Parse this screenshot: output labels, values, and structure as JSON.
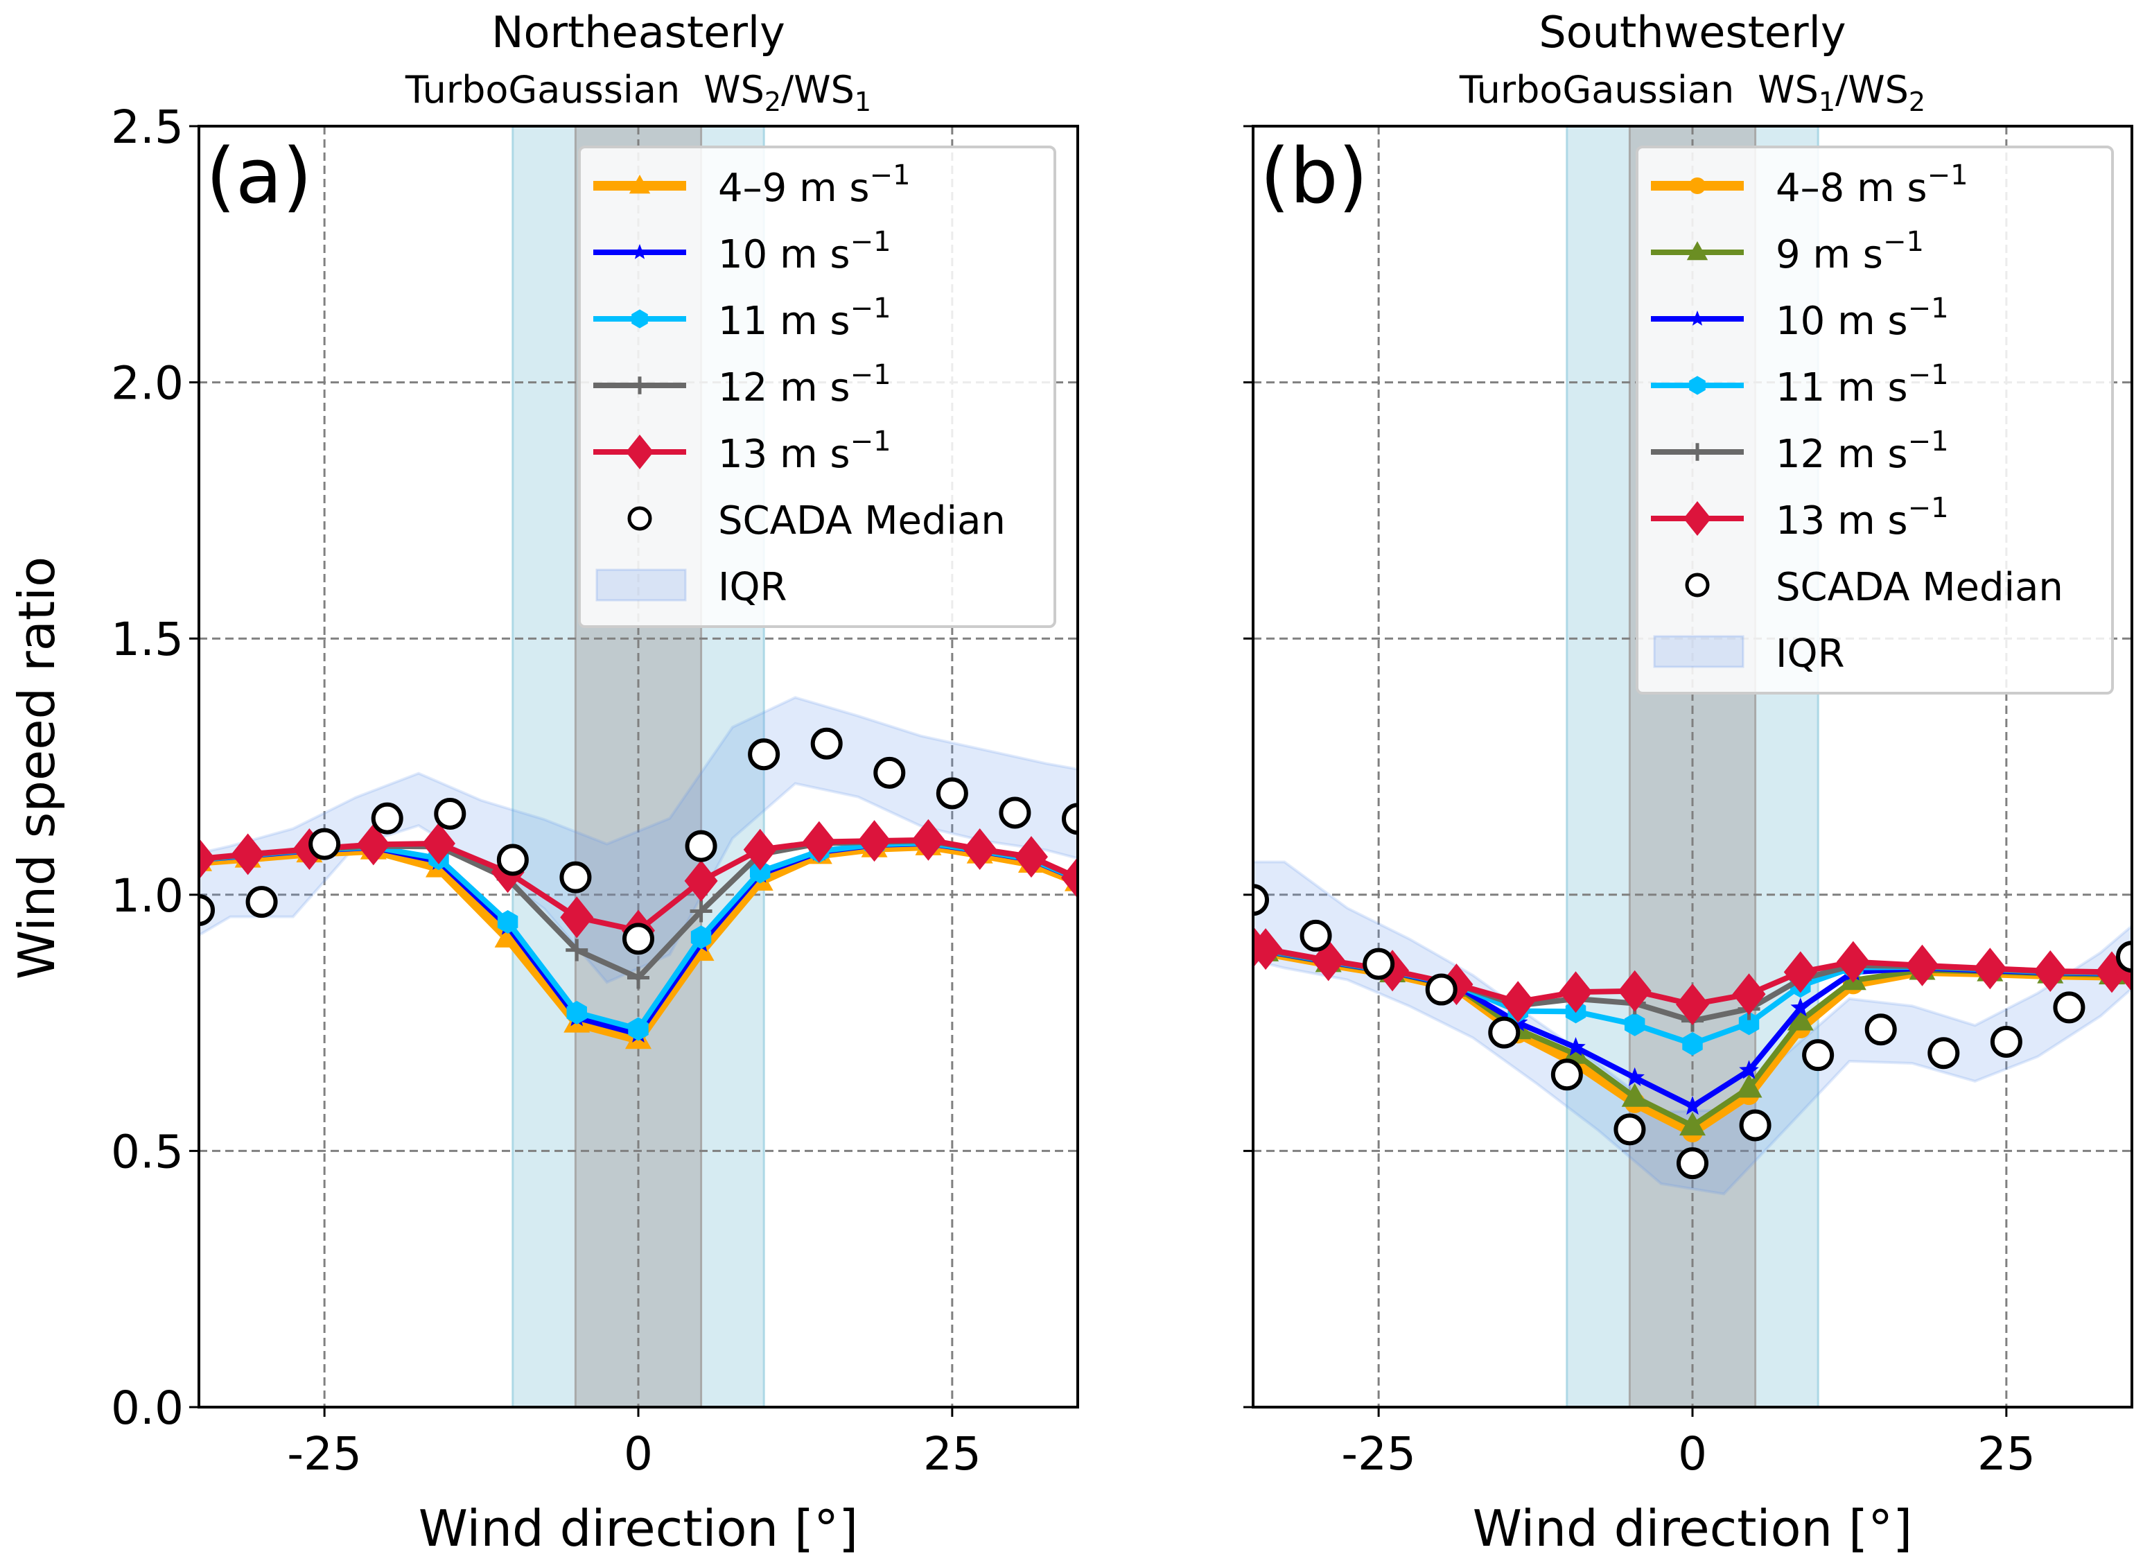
{
  "figure": {
    "ylabel": "Wind speed ratio",
    "xlabel": "Wind direction [°]"
  },
  "chart_data": [
    {
      "type": "line",
      "panel_label": "(a)",
      "title": "Northeasterly",
      "subtitle_prefix": "TurboGaussian",
      "subtitle_ratio": {
        "num": "WS",
        "num_sub": "2",
        "den": "WS",
        "den_sub": "1"
      },
      "xlabel": "Wind direction [°]",
      "ylabel": "Wind speed ratio",
      "xlim": [
        -35,
        35
      ],
      "ylim": [
        0.0,
        2.5
      ],
      "xticks": [
        -25,
        0,
        25
      ],
      "xtick_labels": [
        "-25",
        "0",
        "25"
      ],
      "yticks": [
        0.0,
        0.5,
        1.0,
        1.5,
        2.0,
        2.5
      ],
      "ytick_labels": [
        "0.0",
        "0.5",
        "1.0",
        "1.5",
        "2.0",
        "2.5"
      ],
      "grid": true,
      "legend_position": "top-right",
      "shaded_regions": [
        {
          "name": "outer-sector",
          "x": [
            -10,
            10
          ],
          "color": "#add8e6"
        },
        {
          "name": "inner-sector",
          "x": [
            -5,
            5
          ],
          "color": "#a9a9a9"
        }
      ],
      "model_x": [
        -35,
        -31.1,
        -26.2,
        -21.1,
        -15.9,
        -10.4,
        -4.9,
        0,
        5,
        9.7,
        14.4,
        18.8,
        23.1,
        27.2,
        31.3,
        35
      ],
      "series": [
        {
          "name": "4–9 m s⁻¹",
          "label_base": "4–9",
          "color": "#ffa500",
          "marker": "triangle",
          "width": "thick",
          "values": [
            1.065,
            1.072,
            1.082,
            1.088,
            1.053,
            0.916,
            0.75,
            0.718,
            0.89,
            1.027,
            1.079,
            1.092,
            1.096,
            1.08,
            1.062,
            1.026
          ]
        },
        {
          "name": "10 m s⁻¹",
          "label_base": "10",
          "color": "#0000ff",
          "marker": "star",
          "width": "normal",
          "values": [
            1.068,
            1.076,
            1.086,
            1.092,
            1.065,
            0.938,
            0.76,
            0.728,
            0.905,
            1.04,
            1.083,
            1.097,
            1.1,
            1.085,
            1.068,
            1.03
          ]
        },
        {
          "name": "11 m s⁻¹",
          "label_base": "11",
          "color": "#00bfff",
          "marker": "hexagon",
          "width": "normal",
          "values": [
            1.068,
            1.077,
            1.087,
            1.093,
            1.071,
            0.947,
            0.77,
            0.738,
            0.917,
            1.045,
            1.085,
            1.098,
            1.101,
            1.086,
            1.069,
            1.031
          ]
        },
        {
          "name": "12 m s⁻¹",
          "label_base": "12",
          "color": "#696969",
          "marker": "plus",
          "width": "normal",
          "values": [
            1.069,
            1.078,
            1.088,
            1.095,
            1.094,
            1.031,
            0.892,
            0.838,
            0.968,
            1.079,
            1.1,
            1.103,
            1.105,
            1.088,
            1.073,
            1.032
          ]
        },
        {
          "name": "13 m s⁻¹",
          "label_base": "13",
          "color": "#dc143c",
          "marker": "diamond",
          "width": "normal",
          "values": [
            1.07,
            1.079,
            1.089,
            1.098,
            1.1,
            1.044,
            0.956,
            0.93,
            1.027,
            1.088,
            1.103,
            1.105,
            1.107,
            1.089,
            1.074,
            1.033
          ]
        }
      ],
      "scada_median": {
        "name": "SCADA Median",
        "x": [
          -35,
          -30,
          -25,
          -20,
          -15,
          -10,
          -5,
          0,
          5,
          10,
          15,
          20,
          25,
          30,
          35
        ],
        "values": [
          0.97,
          0.986,
          1.099,
          1.149,
          1.158,
          1.068,
          1.034,
          0.914,
          1.095,
          1.274,
          1.295,
          1.238,
          1.198,
          1.16,
          1.148
        ]
      },
      "iqr": {
        "name": "IQR",
        "color": "#6495ed",
        "x": [
          -35,
          -32.5,
          -27.5,
          -22.5,
          -17.5,
          -12.5,
          -7.5,
          -2.5,
          2.5,
          7.5,
          12.5,
          17.5,
          22.5,
          27.5,
          32.5,
          35
        ],
        "upper": [
          1.081,
          1.095,
          1.129,
          1.19,
          1.237,
          1.184,
          1.147,
          1.099,
          1.149,
          1.327,
          1.385,
          1.349,
          1.31,
          1.283,
          1.256,
          1.245
        ],
        "lower": [
          0.921,
          0.957,
          0.957,
          1.096,
          1.135,
          1.06,
          0.973,
          0.829,
          0.883,
          1.11,
          1.217,
          1.191,
          1.134,
          1.105,
          1.087,
          1.071
        ]
      }
    },
    {
      "type": "line",
      "panel_label": "(b)",
      "title": "Southwesterly",
      "subtitle_prefix": "TurboGaussian",
      "subtitle_ratio": {
        "num": "WS",
        "num_sub": "1",
        "den": "WS",
        "den_sub": "2"
      },
      "xlabel": "Wind direction [°]",
      "ylabel": "",
      "xlim": [
        -35,
        35
      ],
      "ylim": [
        0.0,
        2.5
      ],
      "xticks": [
        -25,
        0,
        25
      ],
      "xtick_labels": [
        "-25",
        "0",
        "25"
      ],
      "yticks": [
        0.0,
        0.5,
        1.0,
        1.5,
        2.0,
        2.5
      ],
      "ytick_labels": [],
      "grid": true,
      "legend_position": "top-right",
      "shaded_regions": [
        {
          "name": "outer-sector",
          "x": [
            -10,
            10
          ],
          "color": "#add8e6"
        },
        {
          "name": "inner-sector",
          "x": [
            -5,
            5
          ],
          "color": "#a9a9a9"
        }
      ],
      "model_x": [
        -35,
        -34.0,
        -29.0,
        -23.9,
        -18.8,
        -13.9,
        -9.3,
        -4.6,
        0,
        4.5,
        8.6,
        12.8,
        18.3,
        23.7,
        28.5,
        33.4,
        35
      ],
      "series": [
        {
          "name": "4–8 m s⁻¹",
          "label_base": "4–8",
          "color": "#ffa500",
          "marker": "circle",
          "width": "thick",
          "values": [
            0.893,
            0.888,
            0.866,
            0.846,
            0.818,
            0.73,
            0.672,
            0.594,
            0.537,
            0.61,
            0.74,
            0.826,
            0.851,
            0.848,
            0.844,
            0.842,
            0.843
          ]
        },
        {
          "name": "9 m s⁻¹",
          "label_base": "9",
          "color": "#6b8e23",
          "marker": "triangle",
          "width": "normal",
          "values": [
            0.894,
            0.889,
            0.868,
            0.848,
            0.82,
            0.737,
            0.689,
            0.605,
            0.549,
            0.623,
            0.754,
            0.833,
            0.853,
            0.85,
            0.846,
            0.844,
            0.845
          ]
        },
        {
          "name": "10 m s⁻¹",
          "label_base": "10",
          "color": "#0000ff",
          "marker": "star",
          "width": "normal",
          "values": [
            0.895,
            0.89,
            0.869,
            0.849,
            0.822,
            0.75,
            0.702,
            0.643,
            0.587,
            0.657,
            0.779,
            0.849,
            0.857,
            0.852,
            0.848,
            0.846,
            0.847
          ]
        },
        {
          "name": "11 m s⁻¹",
          "label_base": "11",
          "color": "#00bfff",
          "marker": "hexagon",
          "width": "normal",
          "values": [
            0.896,
            0.891,
            0.87,
            0.85,
            0.824,
            0.773,
            0.772,
            0.747,
            0.709,
            0.749,
            0.822,
            0.858,
            0.859,
            0.854,
            0.849,
            0.847,
            0.848
          ]
        },
        {
          "name": "12 m s⁻¹",
          "label_base": "12",
          "color": "#696969",
          "marker": "plus",
          "width": "normal",
          "values": [
            0.897,
            0.892,
            0.871,
            0.851,
            0.825,
            0.784,
            0.797,
            0.788,
            0.754,
            0.777,
            0.835,
            0.862,
            0.86,
            0.855,
            0.85,
            0.848,
            0.849
          ]
        },
        {
          "name": "13 m s⁻¹",
          "label_base": "13",
          "color": "#dc143c",
          "marker": "diamond",
          "width": "normal",
          "values": [
            0.898,
            0.894,
            0.872,
            0.852,
            0.825,
            0.791,
            0.81,
            0.812,
            0.786,
            0.806,
            0.849,
            0.869,
            0.862,
            0.856,
            0.851,
            0.849,
            0.851
          ]
        }
      ],
      "scada_median": {
        "name": "SCADA Median",
        "x": [
          -35,
          -30,
          -25,
          -20,
          -15,
          -10,
          -5,
          0,
          5,
          10,
          15,
          20,
          25,
          30,
          35
        ],
        "values": [
          0.99,
          0.92,
          0.865,
          0.815,
          0.731,
          0.649,
          0.542,
          0.476,
          0.55,
          0.687,
          0.737,
          0.691,
          0.713,
          0.78,
          0.879
        ]
      },
      "iqr": {
        "name": "IQR",
        "color": "#6495ed",
        "x": [
          -35,
          -32.5,
          -27.5,
          -22.5,
          -17.5,
          -12.5,
          -7.5,
          -2.5,
          2.5,
          7.5,
          12.5,
          17.5,
          22.5,
          27.5,
          32.5,
          35
        ],
        "upper": [
          1.064,
          1.064,
          0.974,
          0.913,
          0.843,
          0.755,
          0.67,
          0.576,
          0.58,
          0.69,
          0.797,
          0.783,
          0.745,
          0.808,
          0.887,
          0.939
        ],
        "lower": [
          0.872,
          0.857,
          0.834,
          0.782,
          0.721,
          0.633,
          0.54,
          0.436,
          0.416,
          0.545,
          0.675,
          0.671,
          0.636,
          0.684,
          0.763,
          0.817
        ]
      }
    }
  ],
  "legend_common": {
    "unit_text": "m s",
    "unit_exp": "−1",
    "scada_label": "SCADA Median",
    "iqr_label": "IQR"
  }
}
